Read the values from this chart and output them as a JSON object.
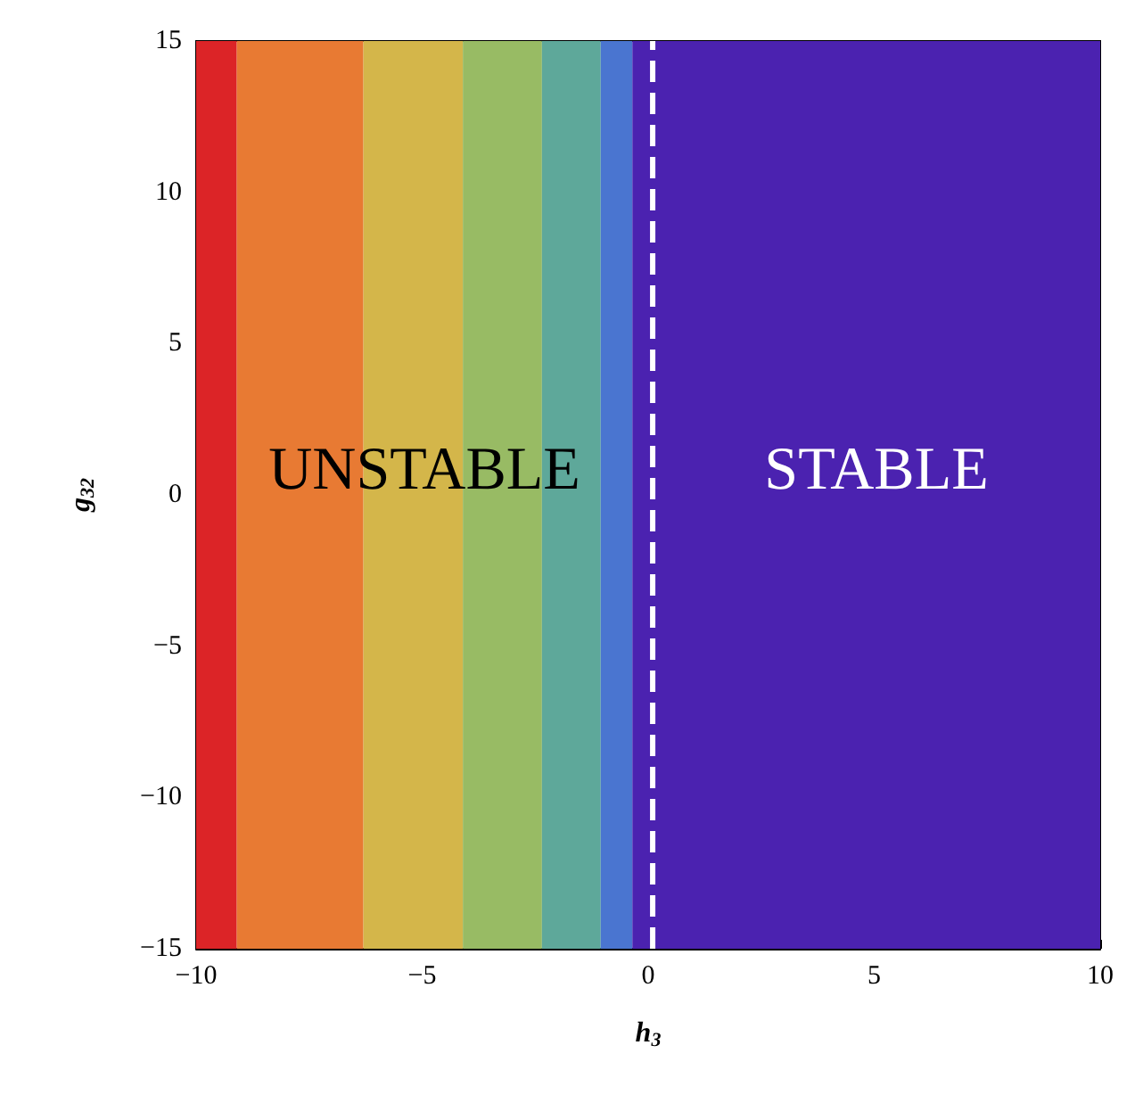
{
  "chart_data": {
    "type": "line",
    "xlabel": "h$_{3}$",
    "ylabel": "g$_{32}$",
    "xlim": [
      -10,
      10
    ],
    "ylim": [
      -15,
      15
    ],
    "xticks": [
      -10,
      -5,
      0,
      5,
      10
    ],
    "yticks": [
      -15,
      -10,
      -5,
      0,
      5,
      10,
      15
    ],
    "line_style": "dashed",
    "marker": "none",
    "series": [
      {
        "x": [
          0.1,
          0.1
        ],
        "values": [
          -15,
          15
        ],
        "color": "#ffffff"
      }
    ],
    "bands": [
      {
        "axis": "x",
        "from": -10,
        "to": -9.1,
        "color": "#dc2427"
      },
      {
        "axis": "x",
        "from": -9.1,
        "to": -6.3,
        "color": "#e87a33"
      },
      {
        "axis": "x",
        "from": -6.3,
        "to": -4.1,
        "color": "#d4b64a"
      },
      {
        "axis": "x",
        "from": -4.1,
        "to": -2.35,
        "color": "#98bb64"
      },
      {
        "axis": "x",
        "from": -2.35,
        "to": -1.05,
        "color": "#5ea89a"
      },
      {
        "axis": "x",
        "from": -1.05,
        "to": -0.35,
        "color": "#4a75d0"
      },
      {
        "axis": "x",
        "from": -0.35,
        "to": 10,
        "color": "#4b22b0"
      }
    ],
    "annotations": [
      "UNSTABLE",
      "STABLE"
    ]
  }
}
